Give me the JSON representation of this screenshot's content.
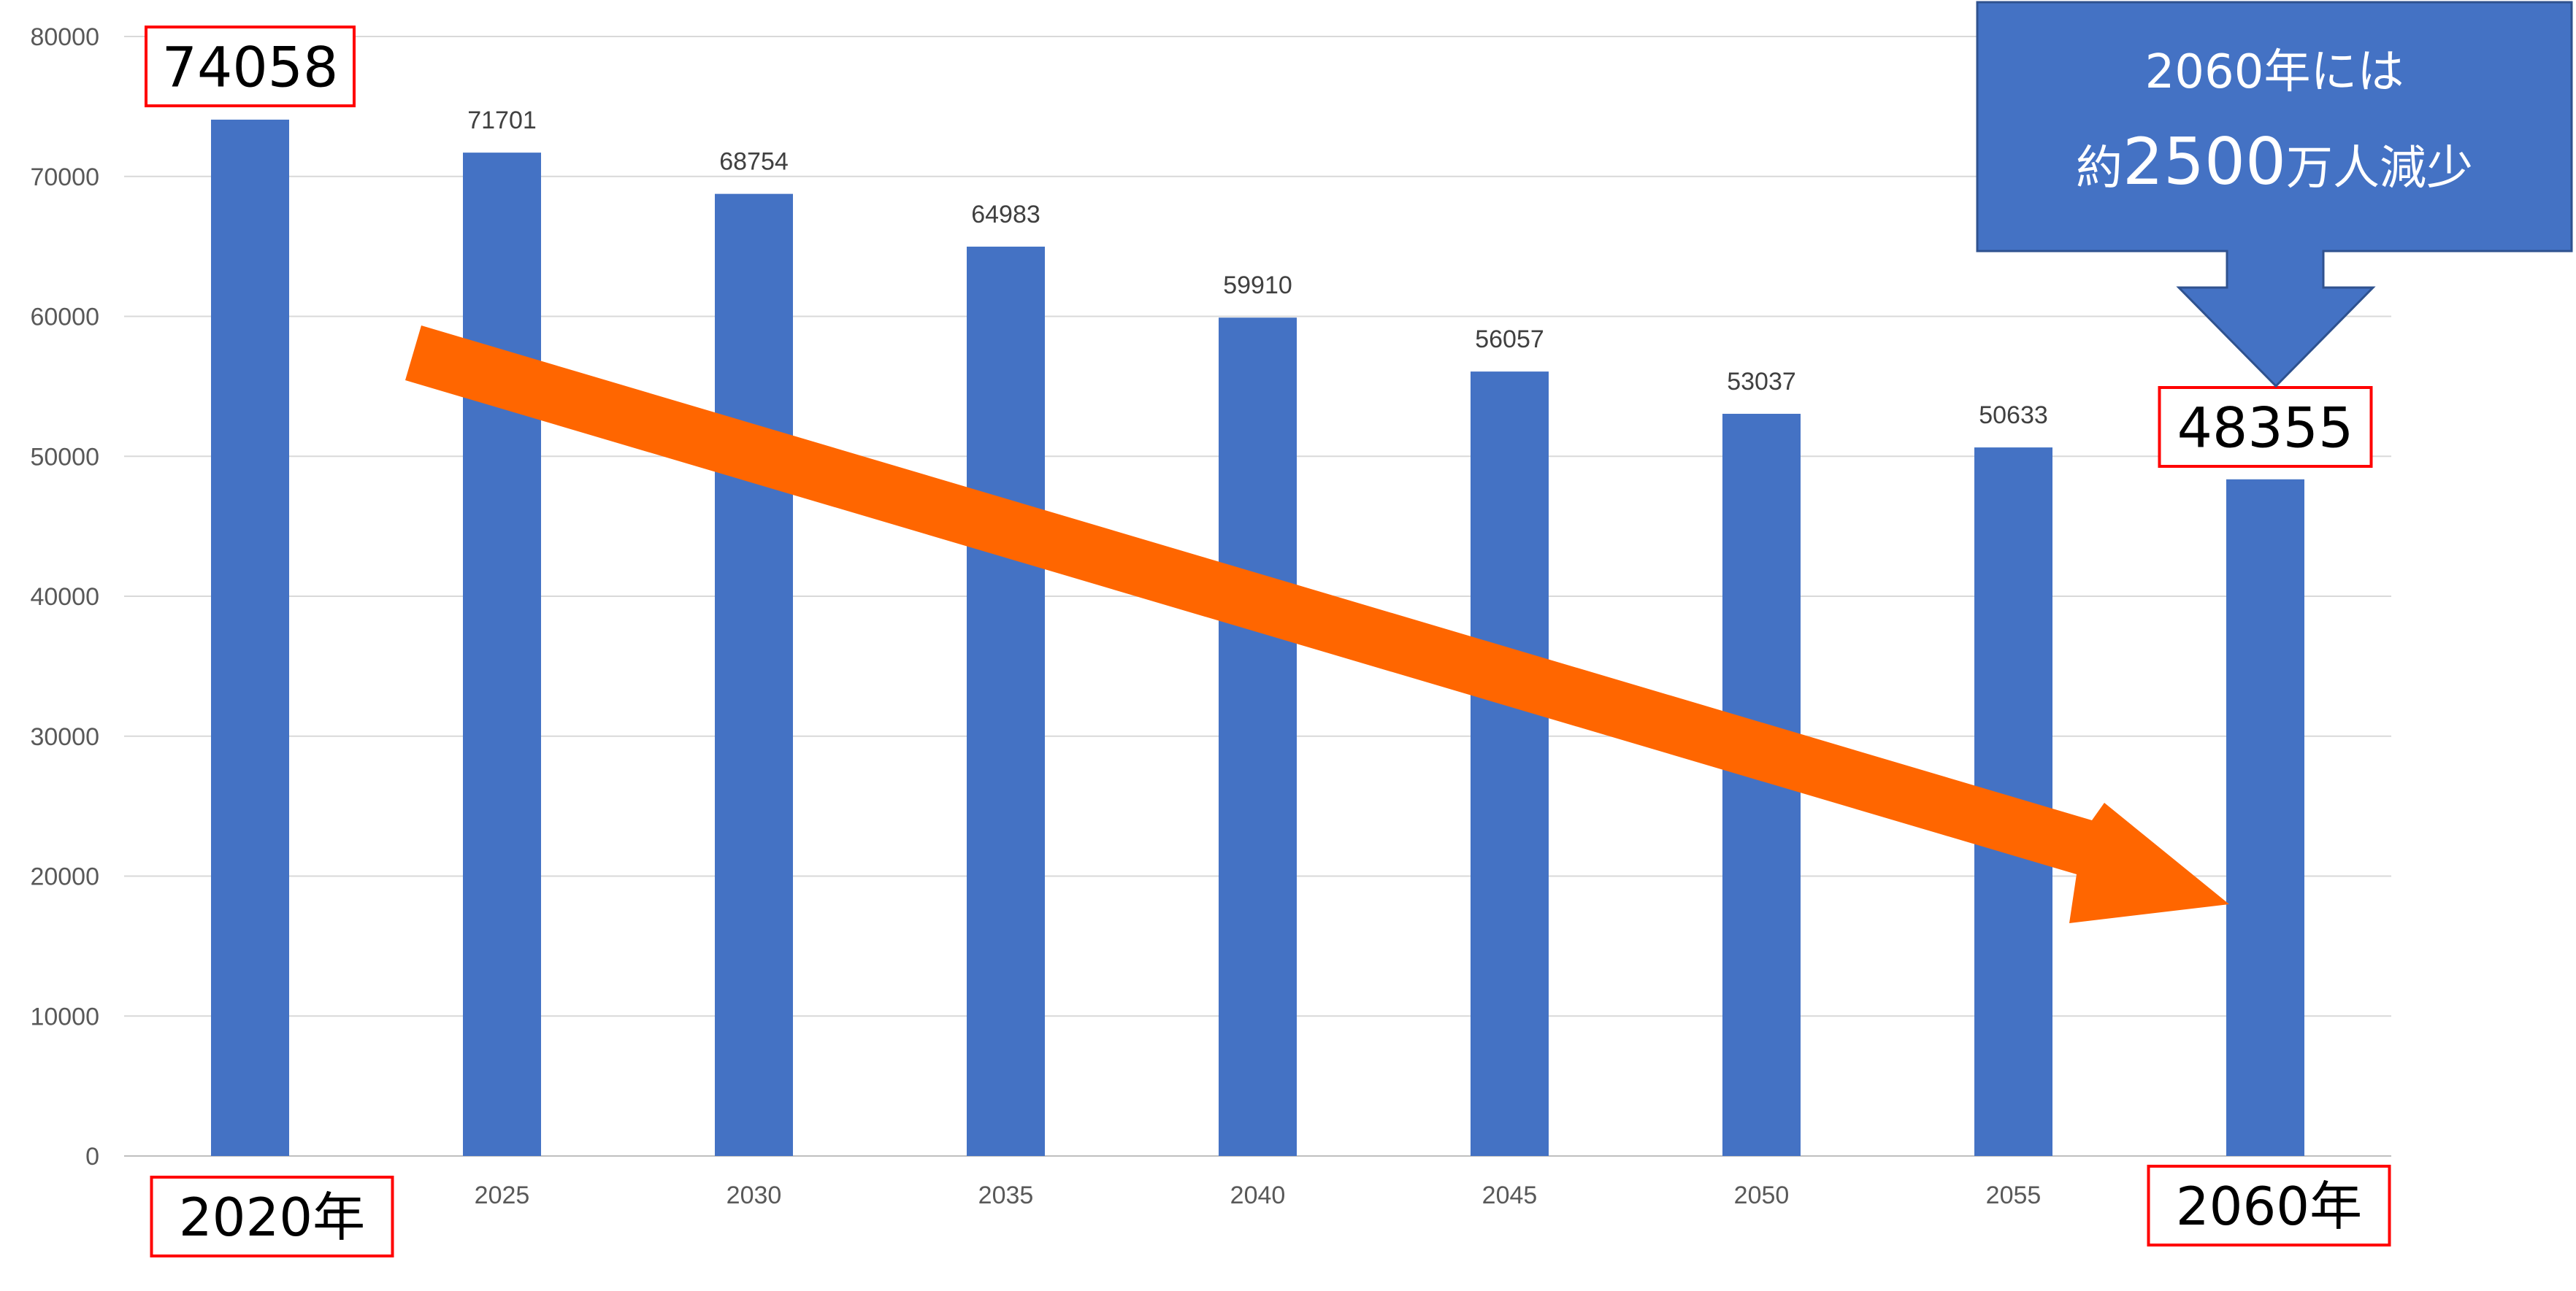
{
  "chart_data": {
    "type": "bar",
    "categories": [
      "2020年",
      "2025",
      "2030",
      "2035",
      "2040",
      "2045",
      "2050",
      "2055",
      "2060年"
    ],
    "values": [
      74058,
      71701,
      68754,
      64983,
      59910,
      56057,
      53037,
      50633,
      48355
    ],
    "data_labels": [
      "74058",
      "71701",
      "68754",
      "64983",
      "59910",
      "56057",
      "53037",
      "50633",
      "48355"
    ],
    "y_ticks": [
      "0",
      "10000",
      "20000",
      "30000",
      "40000",
      "50000",
      "60000",
      "70000",
      "80000"
    ],
    "ylim": [
      0,
      80000
    ],
    "grid": true,
    "title": "",
    "xlabel": "",
    "ylabel": "",
    "bar_color": "#4472C4",
    "highlight_box_color": "#FF0000",
    "trend_arrow_color": "#FF6600"
  },
  "annotation": {
    "callout_line1": "2060年には",
    "callout_prefix": "約",
    "callout_number": "2500",
    "callout_suffix": "万人減少",
    "callout_color": "#4472C4",
    "callout_border": "#2F528F"
  }
}
